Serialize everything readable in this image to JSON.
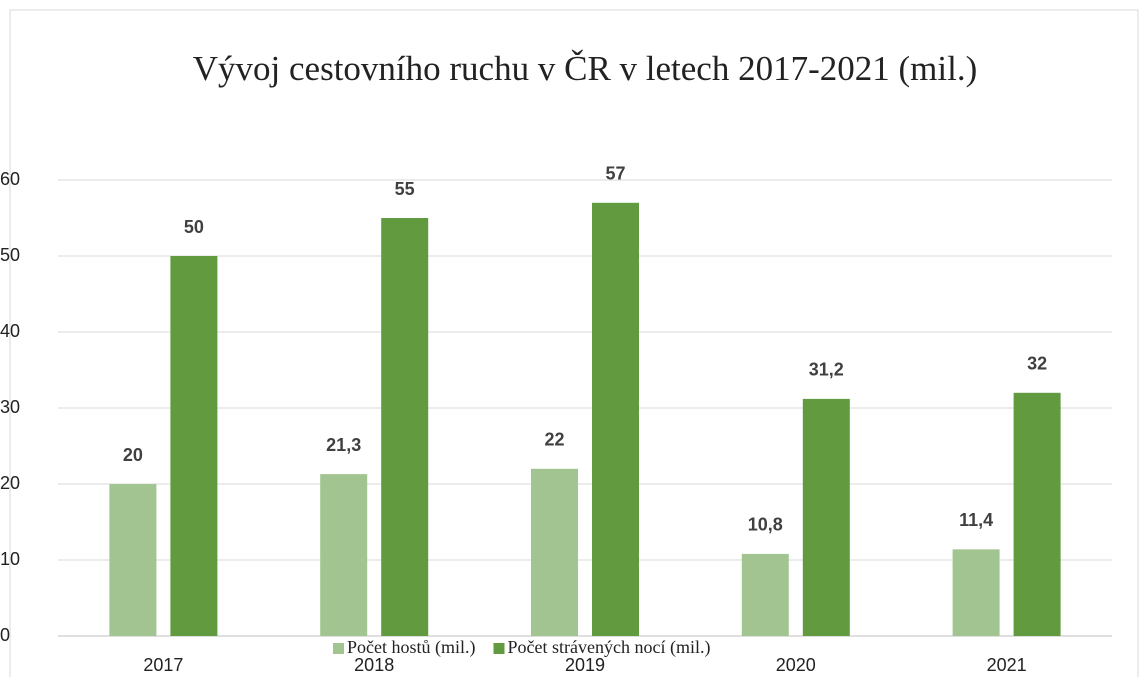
{
  "chart_data": {
    "type": "bar",
    "title": "Vývoj cestovního ruchu v ČR v letech 2017-2021 (mil.)",
    "categories": [
      "2017",
      "2018",
      "2019",
      "2020",
      "2021"
    ],
    "series": [
      {
        "name": "Počet hostů (mil.)",
        "color": "#a2c490",
        "values": [
          20,
          21.3,
          22,
          10.8,
          11.4
        ],
        "value_labels": [
          "20",
          "21,3",
          "22",
          "10,8",
          "11,4"
        ]
      },
      {
        "name": "Počet strávených nocí (mil.)",
        "color": "#629a3f",
        "values": [
          50,
          55,
          57,
          31.2,
          32
        ],
        "value_labels": [
          "50",
          "55",
          "57",
          "31,2",
          "32"
        ]
      }
    ],
    "ylim": [
      0,
      60
    ],
    "yticks": [
      0,
      10,
      20,
      30,
      40,
      50,
      60
    ],
    "grid": true,
    "legend": "bottom"
  }
}
